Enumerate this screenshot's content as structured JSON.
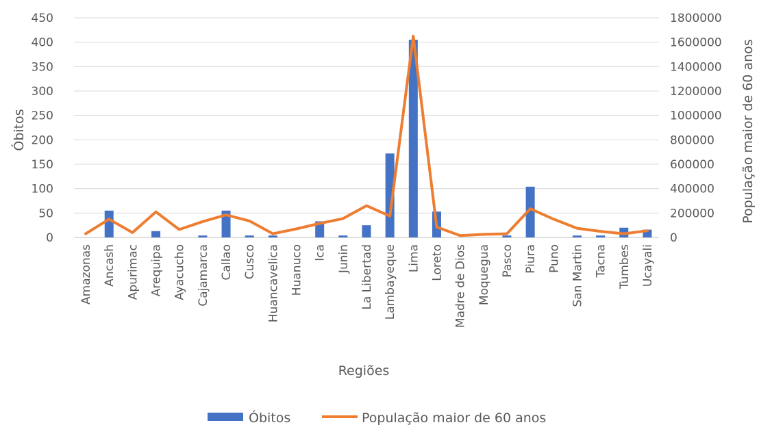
{
  "chart_data": {
    "type": "bar",
    "xlabel": "Regiões",
    "ylabel": "Óbitos",
    "y2label": "População maior de 60 anos",
    "ylim": [
      0,
      450
    ],
    "y2lim": [
      0,
      1800000
    ],
    "yticks": [
      "0",
      "50",
      "100",
      "150",
      "200",
      "250",
      "300",
      "350",
      "400",
      "450"
    ],
    "y2ticks": [
      "0",
      "200000",
      "400000",
      "600000",
      "800000",
      "1000000",
      "1200000",
      "1400000",
      "1600000",
      "1800000"
    ],
    "grid": true,
    "legend_position": "bottom",
    "categories": [
      "Amazonas",
      "Ancash",
      "Apurimac",
      "Arequipa",
      "Ayacucho",
      "Cajamarca",
      "Callao",
      "Cusco",
      "Huancavelica",
      "Huanuco",
      "Ica",
      "Junin",
      "La Libertad",
      "Lambayeque",
      "Lima",
      "Loreto",
      "Madre de Dios",
      "Moquegua",
      "Pasco",
      "Piura",
      "Puno",
      "San Martin",
      "Tacna",
      "Tumbes",
      "Ucayali"
    ],
    "series": [
      {
        "name": "Óbitos",
        "kind": "bar",
        "axis": "left",
        "color": "#4472C4",
        "values": [
          0,
          55,
          0,
          13,
          0,
          4,
          55,
          4,
          4,
          0,
          33,
          4,
          25,
          172,
          405,
          53,
          0,
          0,
          4,
          104,
          0,
          4,
          4,
          20,
          16
        ]
      },
      {
        "name": "População maior de 60 anos",
        "kind": "line",
        "axis": "right",
        "color": "#ED7D31",
        "values": [
          30000,
          150000,
          40000,
          210000,
          65000,
          130000,
          185000,
          135000,
          30000,
          70000,
          115000,
          155000,
          260000,
          175000,
          1650000,
          85000,
          15000,
          25000,
          30000,
          235000,
          150000,
          75000,
          50000,
          30000,
          55000
        ]
      }
    ]
  }
}
